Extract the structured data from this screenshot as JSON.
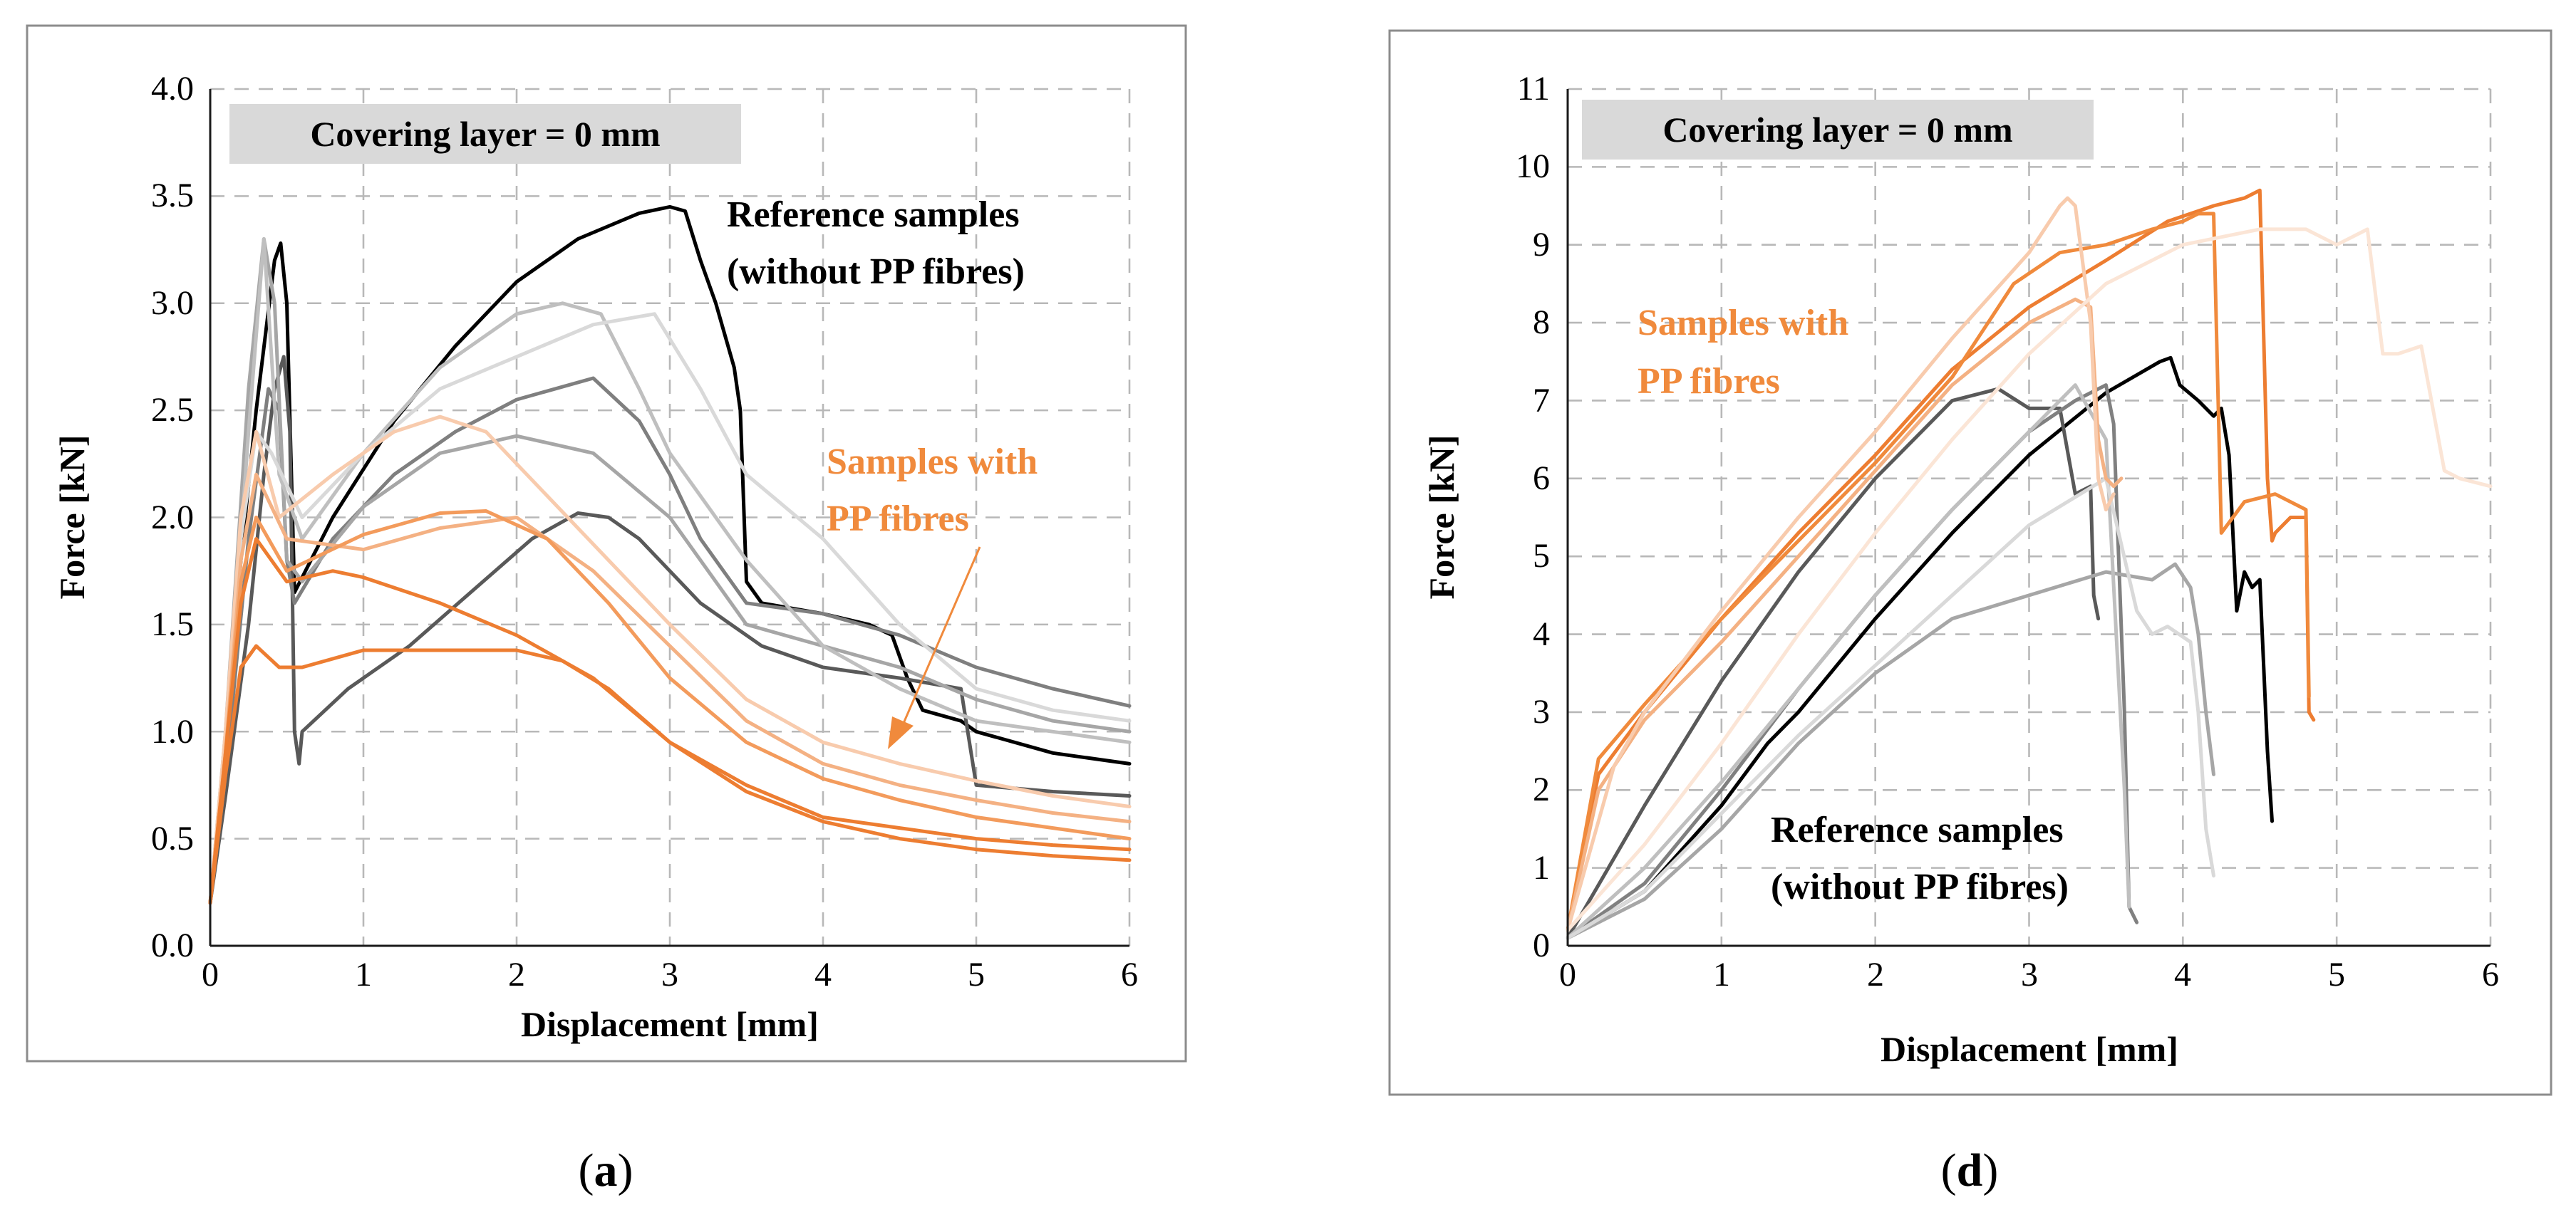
{
  "colors": {
    "reference_label": "#000000",
    "pp_label": "#f08a3c",
    "badge_fill": "#d9d9d9",
    "frame": "#8c8c8c"
  },
  "chart_data": [
    {
      "type": "line",
      "title": "",
      "badge": "Covering layer = 0 mm",
      "xlabel": "Displacement [mm]",
      "ylabel": "Force [kN]",
      "xlim": [
        0,
        6
      ],
      "ylim": [
        0,
        4
      ],
      "xticks": [
        "0",
        "1",
        "2",
        "3",
        "4",
        "5",
        "6"
      ],
      "yticks": [
        "0.0",
        "0.5",
        "1.0",
        "1.5",
        "2.0",
        "2.5",
        "3.0",
        "3.5",
        "4.0"
      ],
      "grid": true,
      "annotations": [
        {
          "lines": [
            "Reference samples",
            "(without PP fibres)"
          ],
          "color": "#000000"
        },
        {
          "lines": [
            "Samples with",
            "PP fibres"
          ],
          "color": "#f08a3c"
        }
      ],
      "caption_letter": "a",
      "series": [
        {
          "color": "#000000",
          "x": [
            0,
            0.1,
            0.2,
            0.3,
            0.42,
            0.46,
            0.5,
            0.55,
            0.8,
            1.2,
            1.6,
            2.0,
            2.4,
            2.8,
            3.0,
            3.1,
            3.2,
            3.3,
            3.42,
            3.46,
            3.5,
            3.6,
            4.0,
            4.3,
            4.45,
            4.55,
            4.65,
            4.9,
            5.0,
            5.5,
            6.0
          ],
          "y": [
            0.2,
            0.9,
            1.8,
            2.5,
            3.2,
            3.28,
            3.0,
            1.65,
            2.0,
            2.45,
            2.8,
            3.1,
            3.3,
            3.42,
            3.45,
            3.43,
            3.2,
            3.0,
            2.7,
            2.5,
            1.7,
            1.6,
            1.55,
            1.5,
            1.45,
            1.25,
            1.1,
            1.05,
            1.0,
            0.9,
            0.85
          ]
        },
        {
          "color": "#595959",
          "x": [
            0,
            0.1,
            0.25,
            0.35,
            0.42,
            0.48,
            0.52,
            0.55,
            0.58,
            0.6,
            0.9,
            1.3,
            1.7,
            2.1,
            2.4,
            2.6,
            2.8,
            3.2,
            3.6,
            4.0,
            4.5,
            4.9,
            5.0,
            5.5,
            6.0
          ],
          "y": [
            0.2,
            0.7,
            1.5,
            2.2,
            2.6,
            2.75,
            2.4,
            1.0,
            0.85,
            1.0,
            1.2,
            1.4,
            1.65,
            1.9,
            2.02,
            2.0,
            1.9,
            1.6,
            1.4,
            1.3,
            1.25,
            1.2,
            0.75,
            0.72,
            0.7
          ]
        },
        {
          "color": "#7f7f7f",
          "x": [
            0,
            0.1,
            0.25,
            0.38,
            0.45,
            0.5,
            0.55,
            0.8,
            1.2,
            1.6,
            2.0,
            2.5,
            2.8,
            3.0,
            3.2,
            3.5,
            4.0,
            4.5,
            5.0,
            5.5,
            6.0
          ],
          "y": [
            0.2,
            0.8,
            1.9,
            2.6,
            2.5,
            1.8,
            1.6,
            1.9,
            2.2,
            2.4,
            2.55,
            2.65,
            2.45,
            2.2,
            1.9,
            1.6,
            1.55,
            1.45,
            1.3,
            1.2,
            1.12
          ]
        },
        {
          "color": "#a6a6a6",
          "x": [
            0,
            0.1,
            0.25,
            0.35,
            0.42,
            0.5,
            0.6,
            1.0,
            1.5,
            2.0,
            2.5,
            3.0,
            3.3,
            3.5,
            4.0,
            4.5,
            5.0,
            5.5,
            6.0
          ],
          "y": [
            0.2,
            1.0,
            2.6,
            3.3,
            3.0,
            1.8,
            1.7,
            2.05,
            2.3,
            2.38,
            2.3,
            2.0,
            1.7,
            1.5,
            1.4,
            1.3,
            1.15,
            1.05,
            1.0
          ]
        },
        {
          "color": "#bfbfbf",
          "x": [
            0,
            0.1,
            0.25,
            0.35,
            0.45,
            0.6,
            1.0,
            1.5,
            2.0,
            2.3,
            2.55,
            2.8,
            3.0,
            3.5,
            4.0,
            4.5,
            5.0,
            5.5,
            6.0
          ],
          "y": [
            0.2,
            0.9,
            2.4,
            3.3,
            2.2,
            1.9,
            2.3,
            2.7,
            2.95,
            3.0,
            2.95,
            2.6,
            2.3,
            1.8,
            1.4,
            1.2,
            1.05,
            1.0,
            0.95
          ]
        },
        {
          "color": "#d9d9d9",
          "x": [
            0,
            0.1,
            0.2,
            0.3,
            0.4,
            0.6,
            1.0,
            1.5,
            2.0,
            2.5,
            2.9,
            3.2,
            3.5,
            4.0,
            4.5,
            5.0,
            5.5,
            6.0
          ],
          "y": [
            0.2,
            1.0,
            1.9,
            2.4,
            2.3,
            2.0,
            2.3,
            2.6,
            2.75,
            2.9,
            2.95,
            2.6,
            2.2,
            1.9,
            1.5,
            1.2,
            1.1,
            1.05
          ]
        },
        {
          "color": "#f8cbad",
          "x": [
            0,
            0.1,
            0.2,
            0.3,
            0.45,
            0.8,
            1.2,
            1.5,
            1.8,
            2.2,
            2.6,
            3.0,
            3.5,
            4.0,
            4.5,
            5.0,
            5.5,
            6.0
          ],
          "y": [
            0.2,
            1.0,
            2.0,
            2.4,
            2.0,
            2.2,
            2.4,
            2.47,
            2.4,
            2.1,
            1.8,
            1.5,
            1.15,
            0.95,
            0.85,
            0.77,
            0.7,
            0.65
          ]
        },
        {
          "color": "#f4b183",
          "x": [
            0,
            0.1,
            0.2,
            0.3,
            0.5,
            1.0,
            1.5,
            2.0,
            2.5,
            3.0,
            3.5,
            4.0,
            4.5,
            5.0,
            5.5,
            6.0
          ],
          "y": [
            0.2,
            0.9,
            1.8,
            2.2,
            1.9,
            1.85,
            1.95,
            2.0,
            1.75,
            1.4,
            1.05,
            0.85,
            0.75,
            0.68,
            0.62,
            0.58
          ]
        },
        {
          "color": "#f39b5c",
          "x": [
            0,
            0.1,
            0.2,
            0.3,
            0.5,
            1.0,
            1.5,
            1.8,
            2.2,
            2.6,
            3.0,
            3.5,
            4.0,
            4.5,
            5.0,
            5.5,
            6.0
          ],
          "y": [
            0.2,
            0.9,
            1.7,
            2.0,
            1.75,
            1.92,
            2.02,
            2.03,
            1.9,
            1.6,
            1.25,
            0.95,
            0.78,
            0.68,
            0.6,
            0.55,
            0.5
          ]
        },
        {
          "color": "#ed7d31",
          "x": [
            0,
            0.1,
            0.2,
            0.3,
            0.5,
            0.8,
            1.0,
            1.5,
            2.0,
            2.5,
            3.0,
            3.5,
            4.0,
            4.5,
            5.0,
            5.5,
            6.0
          ],
          "y": [
            0.2,
            0.9,
            1.6,
            1.9,
            1.7,
            1.75,
            1.72,
            1.6,
            1.45,
            1.25,
            0.95,
            0.75,
            0.6,
            0.55,
            0.5,
            0.47,
            0.45
          ]
        },
        {
          "color": "#ed7d31",
          "x": [
            0,
            0.1,
            0.2,
            0.3,
            0.45,
            0.6,
            1.0,
            1.5,
            2.0,
            2.3,
            2.6,
            3.0,
            3.5,
            4.0,
            4.5,
            5.0,
            5.5,
            6.0
          ],
          "y": [
            0.2,
            0.8,
            1.3,
            1.4,
            1.3,
            1.3,
            1.38,
            1.38,
            1.38,
            1.33,
            1.2,
            0.95,
            0.72,
            0.58,
            0.5,
            0.45,
            0.42,
            0.4
          ]
        }
      ]
    },
    {
      "type": "line",
      "title": "",
      "badge": "Covering layer = 0 mm",
      "xlabel": "Displacement [mm]",
      "ylabel": "Force [kN]",
      "xlim": [
        0,
        6
      ],
      "ylim": [
        0,
        11
      ],
      "xticks": [
        "0",
        "1",
        "2",
        "3",
        "4",
        "5",
        "6"
      ],
      "yticks": [
        "0",
        "1",
        "2",
        "3",
        "4",
        "5",
        "6",
        "7",
        "8",
        "9",
        "10",
        "11"
      ],
      "grid": true,
      "annotations": [
        {
          "lines": [
            "Samples with",
            "PP fibres"
          ],
          "color": "#f08a3c"
        },
        {
          "lines": [
            "Reference samples",
            "(without PP fibres)"
          ],
          "color": "#000000"
        }
      ],
      "caption_letter": "d",
      "series": [
        {
          "color": "#000000",
          "x": [
            0,
            0.5,
            1.0,
            1.3,
            1.5,
            2.0,
            2.5,
            3.0,
            3.5,
            3.85,
            3.92,
            3.98,
            4.1,
            4.2,
            4.25,
            4.3,
            4.35,
            4.4,
            4.45,
            4.5,
            4.55,
            4.58
          ],
          "y": [
            0.1,
            0.7,
            1.8,
            2.6,
            3.0,
            4.2,
            5.3,
            6.3,
            7.1,
            7.5,
            7.55,
            7.2,
            7.0,
            6.8,
            6.9,
            6.3,
            4.3,
            4.8,
            4.6,
            4.7,
            2.5,
            1.6
          ]
        },
        {
          "color": "#595959",
          "x": [
            0,
            0.5,
            1.0,
            1.5,
            2.0,
            2.5,
            2.8,
            3.0,
            3.2,
            3.3,
            3.4,
            3.42,
            3.45
          ],
          "y": [
            0.1,
            1.8,
            3.4,
            4.8,
            6.0,
            7.0,
            7.15,
            6.9,
            6.9,
            5.8,
            5.9,
            4.5,
            4.2
          ]
        },
        {
          "color": "#808080",
          "x": [
            0,
            0.5,
            1.0,
            1.5,
            2.0,
            2.5,
            3.0,
            3.3,
            3.5,
            3.55,
            3.62,
            3.65,
            3.7
          ],
          "y": [
            0.1,
            0.8,
            2.0,
            3.3,
            4.5,
            5.6,
            6.6,
            7.0,
            7.2,
            6.7,
            3.0,
            0.5,
            0.3
          ]
        },
        {
          "color": "#a6a6a6",
          "x": [
            0,
            0.5,
            1.0,
            1.5,
            2.0,
            2.5,
            3.0,
            3.5,
            3.8,
            3.95,
            4.05,
            4.1,
            4.15,
            4.2
          ],
          "y": [
            0.1,
            0.6,
            1.5,
            2.6,
            3.5,
            4.2,
            4.5,
            4.8,
            4.7,
            4.9,
            4.6,
            4.0,
            3.0,
            2.2
          ]
        },
        {
          "color": "#bfbfbf",
          "x": [
            0,
            0.5,
            1.0,
            1.5,
            2.0,
            2.5,
            3.0,
            3.3,
            3.5,
            3.62,
            3.65
          ],
          "y": [
            0.1,
            1.0,
            2.1,
            3.3,
            4.5,
            5.6,
            6.6,
            7.2,
            6.5,
            2.0,
            0.5
          ]
        },
        {
          "color": "#d9d9d9",
          "x": [
            0,
            0.5,
            1.0,
            1.5,
            2.0,
            2.5,
            3.0,
            3.5,
            3.7,
            3.8,
            3.9,
            4.05,
            4.1,
            4.15,
            4.2
          ],
          "y": [
            0.1,
            0.7,
            1.7,
            2.7,
            3.6,
            4.5,
            5.4,
            6.0,
            4.3,
            4.0,
            4.1,
            3.9,
            3.0,
            1.5,
            0.9
          ]
        },
        {
          "color": "#ed7d31",
          "x": [
            0,
            0.2,
            0.5,
            1.0,
            1.5,
            2.0,
            2.5,
            3.0,
            3.5,
            3.9,
            4.2,
            4.4,
            4.5,
            4.55,
            4.58,
            4.6,
            4.7,
            4.8,
            4.82,
            4.85
          ],
          "y": [
            0.2,
            2.2,
            3.0,
            4.2,
            5.3,
            6.3,
            7.4,
            8.2,
            8.8,
            9.3,
            9.5,
            9.6,
            9.7,
            6.0,
            5.2,
            5.3,
            5.5,
            5.5,
            3.0,
            2.9
          ]
        },
        {
          "color": "#f08a3c",
          "x": [
            0,
            0.2,
            0.5,
            1.0,
            1.5,
            2.0,
            2.5,
            2.9,
            3.2,
            3.5,
            3.8,
            4.0,
            4.1,
            4.2,
            4.25,
            4.4,
            4.6,
            4.8,
            4.82
          ],
          "y": [
            0.2,
            2.4,
            3.1,
            4.2,
            5.2,
            6.2,
            7.3,
            8.5,
            8.9,
            9.0,
            9.2,
            9.3,
            9.4,
            9.4,
            5.3,
            5.7,
            5.8,
            5.6,
            3.2
          ]
        },
        {
          "color": "#f4b183",
          "x": [
            0,
            0.2,
            0.5,
            1.0,
            1.5,
            2.0,
            2.5,
            3.0,
            3.3,
            3.4,
            3.45,
            3.5,
            3.55,
            3.6
          ],
          "y": [
            0.2,
            2.0,
            2.9,
            3.9,
            5.0,
            6.1,
            7.2,
            8.0,
            8.3,
            8.2,
            6.5,
            6.0,
            5.9,
            6.0
          ]
        },
        {
          "color": "#f8cbad",
          "x": [
            0,
            0.3,
            0.5,
            1.0,
            1.5,
            2.0,
            2.5,
            3.0,
            3.2,
            3.25,
            3.3,
            3.4,
            3.45,
            3.5,
            3.55
          ],
          "y": [
            0.2,
            2.3,
            3.0,
            4.3,
            5.5,
            6.6,
            7.8,
            8.9,
            9.5,
            9.6,
            9.5,
            8.0,
            6.0,
            5.6,
            5.8
          ]
        },
        {
          "color": "#fbe5d6",
          "x": [
            0,
            0.5,
            1.0,
            1.5,
            2.0,
            2.5,
            3.0,
            3.5,
            4.0,
            4.5,
            4.8,
            5.0,
            5.1,
            5.2,
            5.3,
            5.4,
            5.55,
            5.7,
            5.8,
            6.0
          ],
          "y": [
            0.2,
            1.3,
            2.6,
            4.0,
            5.3,
            6.5,
            7.6,
            8.5,
            9.0,
            9.2,
            9.2,
            9.0,
            9.1,
            9.2,
            7.6,
            7.6,
            7.7,
            6.1,
            6.0,
            5.9
          ]
        }
      ]
    }
  ]
}
